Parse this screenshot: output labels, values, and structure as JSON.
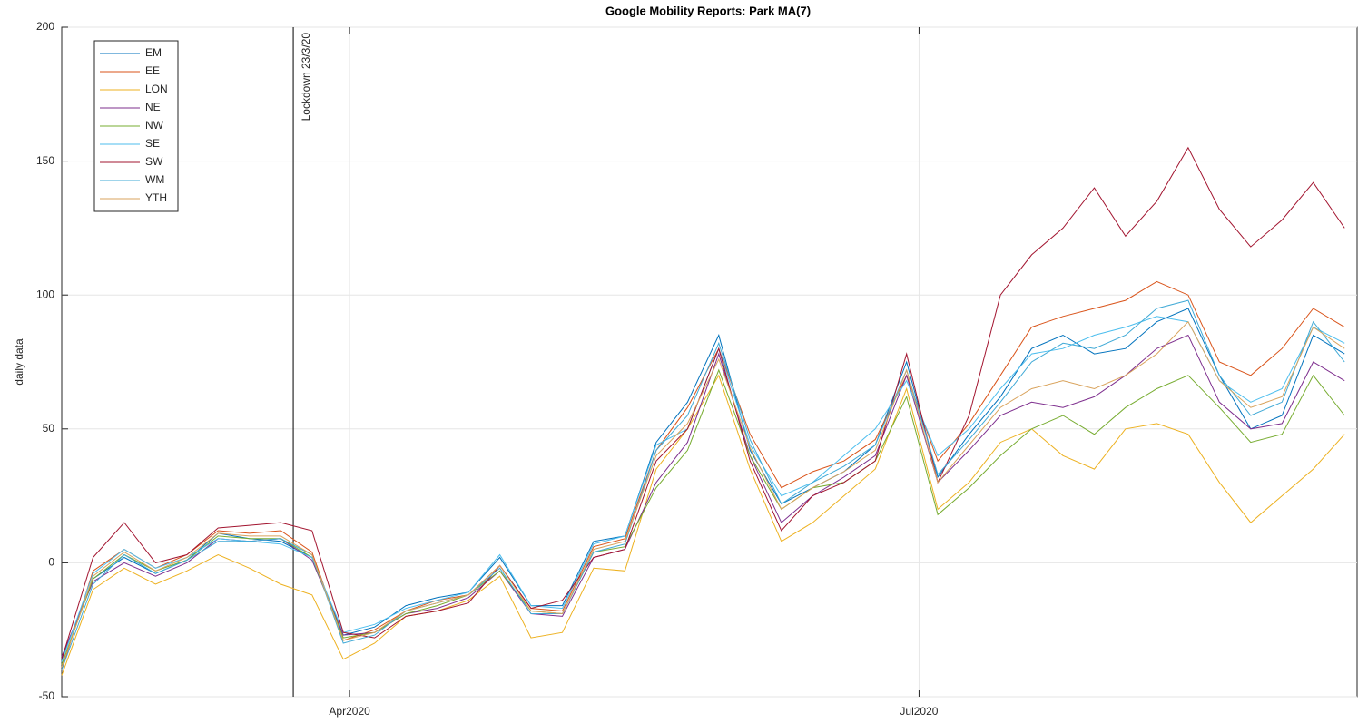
{
  "chart_data": {
    "type": "line",
    "title": "Google Mobility Reports: Park MA(7)",
    "y_label": "daily data",
    "x": [
      0,
      5,
      10,
      15,
      20,
      25,
      30,
      35,
      40,
      45,
      50,
      55,
      60,
      65,
      70,
      75,
      80,
      85,
      90,
      95,
      100,
      105,
      110,
      115,
      120,
      125,
      130,
      135,
      140,
      145,
      150,
      155,
      160,
      165,
      170,
      175,
      180,
      185,
      190,
      195,
      200,
      205
    ],
    "xlim": [
      0,
      207
    ],
    "xticks": [
      {
        "value": 46,
        "label": "Apr2020"
      },
      {
        "value": 137,
        "label": "Jul2020"
      }
    ],
    "ylim": [
      -50,
      200
    ],
    "yticks": [
      -50,
      0,
      50,
      100,
      150,
      200
    ],
    "grid": true,
    "legend": "upper left",
    "annotation": {
      "text": "Lockdown 23/3/20",
      "x": 37
    },
    "series": [
      {
        "name": "EM",
        "color": "#0072BD",
        "values": [
          -36,
          -6,
          2,
          -4,
          1,
          11,
          9,
          8,
          2,
          -27,
          -24,
          -16,
          -13,
          -11,
          2,
          -16,
          -16,
          8,
          10,
          45,
          60,
          85,
          42,
          22,
          28,
          34,
          44,
          75,
          32,
          48,
          62,
          80,
          85,
          78,
          80,
          90,
          95,
          70,
          50,
          55,
          85,
          78
        ]
      },
      {
        "name": "EE",
        "color": "#D95319",
        "values": [
          -40,
          -3,
          5,
          -2,
          3,
          12,
          11,
          12,
          4,
          -29,
          -25,
          -18,
          -14,
          -12,
          -1,
          -17,
          -18,
          6,
          9,
          42,
          58,
          80,
          48,
          28,
          34,
          38,
          46,
          70,
          38,
          52,
          70,
          88,
          92,
          95,
          98,
          105,
          100,
          75,
          70,
          80,
          95,
          88
        ]
      },
      {
        "name": "LON",
        "color": "#EDB120",
        "values": [
          -42,
          -10,
          -2,
          -8,
          -3,
          3,
          -2,
          -8,
          -12,
          -36,
          -30,
          -20,
          -18,
          -14,
          -5,
          -28,
          -26,
          -2,
          -3,
          35,
          50,
          70,
          35,
          8,
          15,
          25,
          35,
          65,
          20,
          30,
          45,
          50,
          40,
          35,
          50,
          52,
          48,
          30,
          15,
          25,
          35,
          48
        ]
      },
      {
        "name": "NE",
        "color": "#7E2F8E",
        "values": [
          -35,
          -7,
          0,
          -5,
          0,
          9,
          8,
          9,
          1,
          -27,
          -26,
          -19,
          -17,
          -13,
          -3,
          -19,
          -20,
          2,
          5,
          30,
          45,
          78,
          40,
          15,
          25,
          32,
          40,
          70,
          30,
          42,
          55,
          60,
          58,
          62,
          70,
          80,
          85,
          60,
          50,
          52,
          75,
          68
        ]
      },
      {
        "name": "NW",
        "color": "#77AC30",
        "values": [
          -38,
          -6,
          3,
          -3,
          1,
          10,
          9,
          9,
          2,
          -28,
          -26,
          -19,
          -16,
          -12,
          -3,
          -18,
          -19,
          4,
          6,
          28,
          42,
          72,
          40,
          20,
          28,
          30,
          38,
          62,
          18,
          28,
          40,
          50,
          55,
          48,
          58,
          65,
          70,
          58,
          45,
          48,
          70,
          55
        ]
      },
      {
        "name": "SE",
        "color": "#4DBEEE",
        "values": [
          -37,
          -4,
          5,
          -2,
          2,
          9,
          8,
          7,
          2,
          -26,
          -23,
          -17,
          -14,
          -11,
          3,
          -16,
          -17,
          7,
          10,
          44,
          50,
          80,
          44,
          25,
          30,
          40,
          50,
          68,
          40,
          50,
          65,
          78,
          80,
          85,
          88,
          92,
          90,
          68,
          60,
          65,
          88,
          82
        ]
      },
      {
        "name": "SW",
        "color": "#A2142F",
        "values": [
          -36,
          2,
          15,
          0,
          3,
          13,
          14,
          15,
          12,
          -26,
          -28,
          -20,
          -18,
          -15,
          -1,
          -17,
          -14,
          2,
          5,
          38,
          50,
          80,
          38,
          12,
          25,
          30,
          38,
          78,
          30,
          55,
          100,
          115,
          125,
          140,
          122,
          135,
          155,
          132,
          118,
          128,
          142,
          125
        ]
      },
      {
        "name": "WM",
        "color": "#3FA9D6",
        "values": [
          -40,
          -8,
          3,
          -4,
          1,
          8,
          8,
          9,
          3,
          -30,
          -27,
          -18,
          -15,
          -12,
          -2,
          -19,
          -19,
          4,
          7,
          42,
          55,
          82,
          46,
          22,
          30,
          36,
          44,
          72,
          33,
          46,
          60,
          75,
          82,
          80,
          85,
          95,
          98,
          70,
          55,
          60,
          90,
          75
        ]
      },
      {
        "name": "YTH",
        "color": "#D9A35C",
        "values": [
          -39,
          -5,
          4,
          -3,
          2,
          11,
          10,
          10,
          3,
          -29,
          -26,
          -18,
          -15,
          -12,
          -1,
          -18,
          -19,
          5,
          8,
          40,
          52,
          76,
          43,
          20,
          28,
          34,
          42,
          72,
          30,
          44,
          58,
          65,
          68,
          65,
          70,
          78,
          90,
          68,
          58,
          62,
          88,
          80
        ]
      }
    ]
  }
}
